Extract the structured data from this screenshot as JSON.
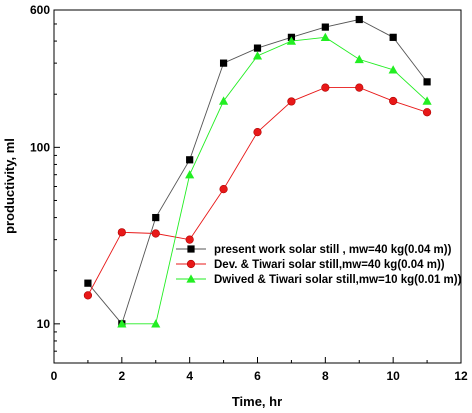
{
  "chart_data": {
    "type": "line",
    "xlabel": "Time,   hr",
    "ylabel": "productivity,   ml",
    "xlim": [
      0,
      12
    ],
    "ylim": [
      6,
      600
    ],
    "yscale": "log",
    "x_ticks": [
      0,
      2,
      4,
      6,
      8,
      10,
      12
    ],
    "y_tick_labels": [
      "10",
      "100",
      "600"
    ],
    "y_tick_values": [
      10,
      100,
      600
    ],
    "grid": false,
    "legend_position": "lower-right",
    "series": [
      {
        "name": "present work solar still , mw=40 kg(0.04 m))",
        "color": "#000000",
        "marker": "square",
        "x": [
          1,
          2,
          3,
          4,
          5,
          6,
          7,
          8,
          9,
          10,
          11
        ],
        "y": [
          17,
          10,
          40,
          85,
          300,
          365,
          420,
          480,
          530,
          420,
          235
        ]
      },
      {
        "name": "Dev. & Tiwari solar still,mw=40 kg(0.04 m))",
        "color": "#e81818",
        "marker": "circle",
        "x": [
          1,
          2,
          3,
          4,
          5,
          6,
          7,
          8,
          9,
          10,
          11
        ],
        "y": [
          14.5,
          33,
          32.5,
          30,
          58,
          122,
          182,
          218,
          218,
          183,
          158
        ]
      },
      {
        "name": "Dwived & Tiwari solar still,mw=10 kg(0.01 m))",
        "color": "#22ee22",
        "marker": "triangle",
        "x": [
          2,
          3,
          4,
          5,
          6,
          7,
          8,
          9,
          10,
          11
        ],
        "y": [
          10,
          10,
          70,
          183,
          330,
          400,
          420,
          315,
          275,
          183
        ]
      }
    ]
  }
}
